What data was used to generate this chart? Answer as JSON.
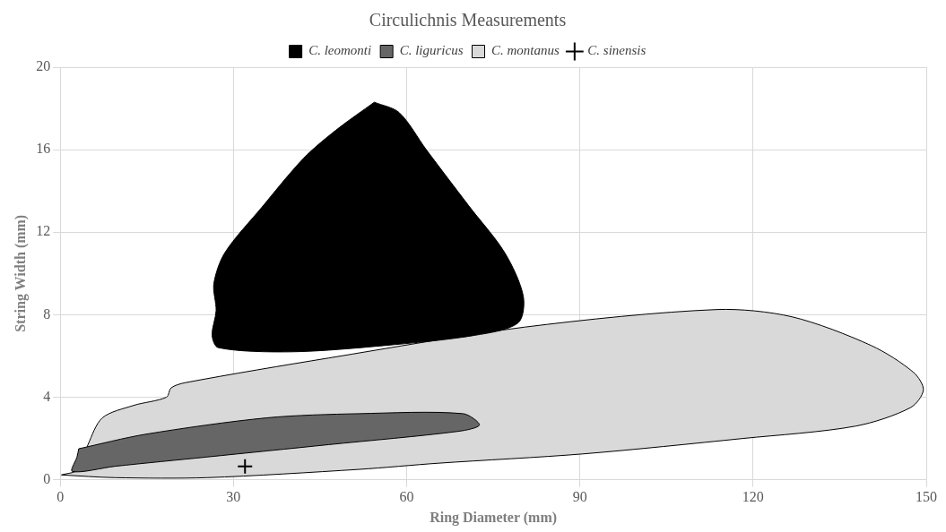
{
  "chart_data": {
    "type": "area",
    "title": "Circulichnis Measurements",
    "xlabel": "Ring Diameter (mm)",
    "ylabel": "String Width (mm)",
    "xlim": [
      0,
      150
    ],
    "xticks": [
      0,
      30,
      60,
      90,
      120,
      150
    ],
    "ylim": [
      0,
      20
    ],
    "yticks": [
      0,
      4,
      8,
      12,
      16,
      20
    ],
    "grid": true,
    "legend": "top",
    "marker": "none",
    "series": [
      {
        "name": "C. leomonti",
        "color": "#000000",
        "x": [
          54.4,
          48,
          42.2,
          34.9,
          28.5,
          26.6,
          27,
          26.3,
          27.4,
          40,
          56,
          71.8,
          79.3,
          80.2,
          77,
          70.7,
          63.4,
          58.7
        ],
        "values": [
          18.3,
          17.0,
          15.6,
          13.2,
          11.0,
          9.5,
          8.2,
          7.0,
          6.4,
          6.2,
          6.5,
          7.0,
          7.6,
          8.9,
          11.0,
          13.3,
          16.0,
          17.8
        ]
      },
      {
        "name": "C. liguricus",
        "color": "#666666",
        "x": [
          3.2,
          14.7,
          35.8,
          51.7,
          69.8,
          72.6,
          69.1,
          46.5,
          25.4,
          9.5,
          2.1,
          2.9
        ],
        "values": [
          1.5,
          2.2,
          3.0,
          3.2,
          3.2,
          2.65,
          2.35,
          1.7,
          1.1,
          0.65,
          0.4,
          1.1
        ]
      },
      {
        "name": "C. montanus",
        "color": "#d9d9d9",
        "x": [
          0.2,
          3.2,
          4.8,
          7.3,
          12.7,
          18.4,
          19.2,
          21.6,
          46.5,
          80.5,
          113.8,
          126.7,
          140.5,
          147.8,
          149.5,
          147.3,
          137.8,
          118.3,
          90.5,
          65.5,
          51.7,
          25.4,
          9.5
        ],
        "values": [
          0.23,
          0.5,
          1.7,
          3.0,
          3.6,
          4.0,
          4.45,
          4.7,
          5.9,
          7.4,
          8.25,
          7.9,
          6.5,
          5.2,
          4.35,
          3.5,
          2.6,
          2.0,
          1.25,
          0.8,
          0.5,
          0.1,
          0.1
        ]
      },
      {
        "name": "C. sinensis",
        "type": "scatter",
        "color": "#000000",
        "marker": "cross",
        "x": [
          32
        ],
        "values": [
          0.65
        ]
      }
    ]
  }
}
